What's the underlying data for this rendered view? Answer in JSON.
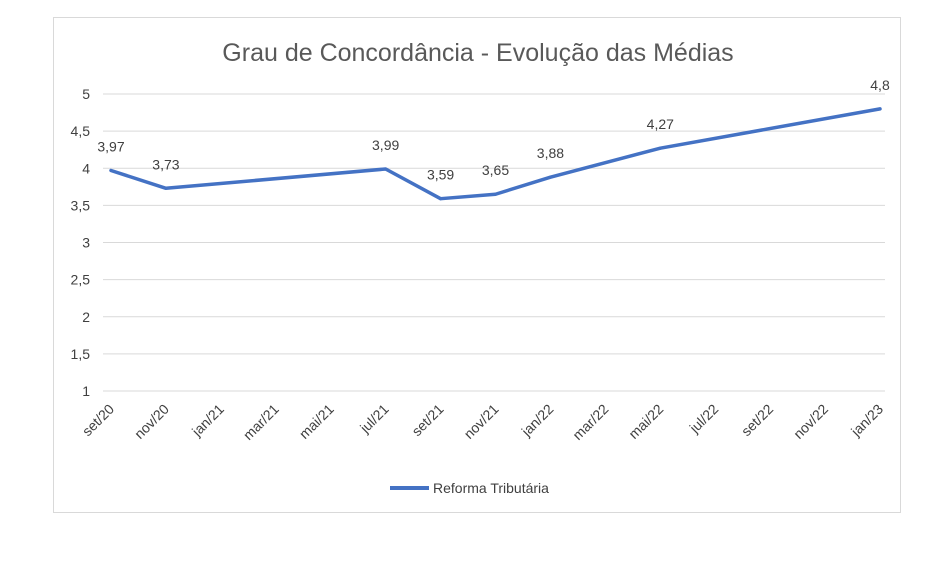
{
  "chart_data": {
    "type": "line",
    "title": "Grau de Concordância - Evolução das Médias",
    "xlabel": "",
    "ylabel": "",
    "categories": [
      "set/20",
      "nov/20",
      "jan/21",
      "mar/21",
      "mai/21",
      "jul/21",
      "set/21",
      "nov/21",
      "jan/22",
      "mar/22",
      "mai/22",
      "jul/22",
      "set/22",
      "nov/22",
      "jan/23"
    ],
    "ylim": [
      1,
      5
    ],
    "yticks": [
      "1",
      "1,5",
      "2",
      "2,5",
      "3",
      "3,5",
      "4",
      "4,5",
      "5"
    ],
    "grid": true,
    "legend_position": "bottom",
    "series": [
      {
        "name": "Reforma Tributária",
        "color": "#4472c4",
        "points": [
          {
            "x": "set/20",
            "y": 3.97,
            "label": "3,97"
          },
          {
            "x": "nov/20",
            "y": 3.73,
            "label": "3,73"
          },
          {
            "x": "jul/21",
            "y": 3.99,
            "label": "3,99"
          },
          {
            "x": "set/21",
            "y": 3.59,
            "label": "3,59"
          },
          {
            "x": "nov/21",
            "y": 3.65,
            "label": "3,65"
          },
          {
            "x": "jan/22",
            "y": 3.88,
            "label": "3,88"
          },
          {
            "x": "mai/22",
            "y": 4.27,
            "label": "4,27"
          },
          {
            "x": "jan/23",
            "y": 4.8,
            "label": "4,8"
          }
        ]
      }
    ]
  }
}
